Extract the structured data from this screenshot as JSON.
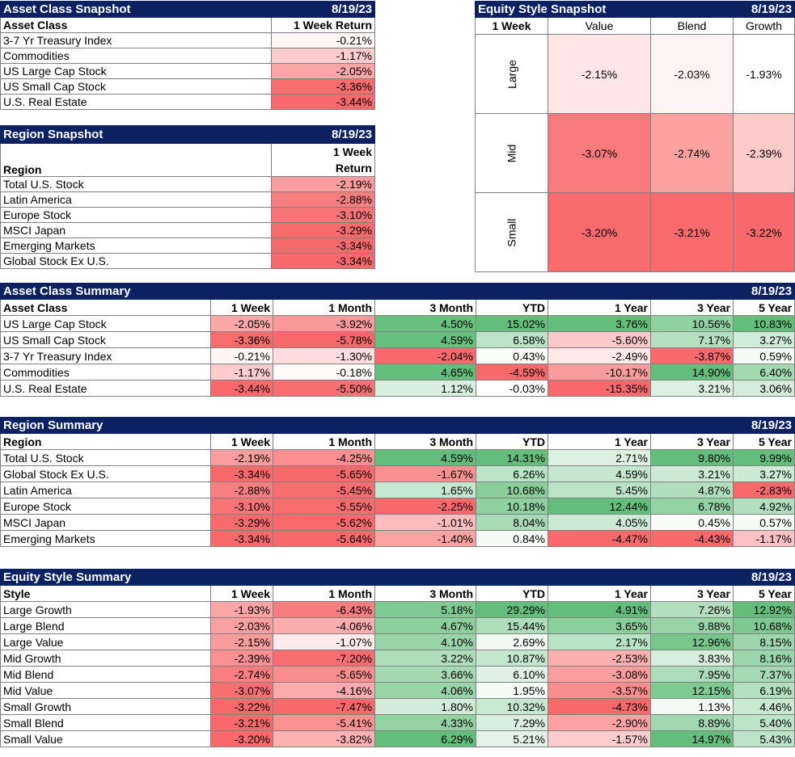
{
  "colors": {
    "header_bg": "#0b2161",
    "neg_strong": "#f8696b",
    "pos_strong": "#63be7b"
  },
  "asset_snapshot": {
    "title": "Asset Class Snapshot",
    "date": "8/19/23",
    "col_label": "Asset Class",
    "col_return": "1 Week Return",
    "rows": [
      {
        "name": "3-7 Yr Treasury Index",
        "value": "-0.21%"
      },
      {
        "name": "Commodities",
        "value": "-1.17%"
      },
      {
        "name": "US Large Cap Stock",
        "value": "-2.05%"
      },
      {
        "name": "US Small Cap Stock",
        "value": "-3.36%"
      },
      {
        "name": "U.S. Real Estate",
        "value": "-3.44%"
      }
    ]
  },
  "region_snapshot": {
    "title": "Region Snapshot",
    "date": "8/19/23",
    "col_label": "Region",
    "col_return_1": "1 Week",
    "col_return_2": "Return",
    "rows": [
      {
        "name": "Total U.S. Stock",
        "value": "-2.19%"
      },
      {
        "name": "Latin America",
        "value": "-2.88%"
      },
      {
        "name": "Europe Stock",
        "value": "-3.10%"
      },
      {
        "name": "MSCI Japan",
        "value": "-3.29%"
      },
      {
        "name": "Emerging Markets",
        "value": "-3.34%"
      },
      {
        "name": "Global Stock Ex U.S.",
        "value": "-3.34%"
      }
    ]
  },
  "style_snapshot": {
    "title": "Equity Style Snapshot",
    "date": "8/19/23",
    "period": "1 Week",
    "cols": [
      "Value",
      "Blend",
      "Growth"
    ],
    "rows": [
      {
        "name": "Large",
        "values": [
          "-2.15%",
          "-2.03%",
          "-1.93%"
        ]
      },
      {
        "name": "Mid",
        "values": [
          "-3.07%",
          "-2.74%",
          "-2.39%"
        ]
      },
      {
        "name": "Small",
        "values": [
          "-3.20%",
          "-3.21%",
          "-3.22%"
        ]
      }
    ]
  },
  "asset_summary": {
    "title": "Asset Class Summary",
    "date": "8/19/23",
    "headers": [
      "Asset Class",
      "1 Week",
      "1 Month",
      "3 Month",
      "YTD",
      "1 Year",
      "3 Year",
      "5 Year"
    ],
    "rows": [
      [
        "US Large Cap Stock",
        "-2.05%",
        "-3.92%",
        "4.50%",
        "15.02%",
        "3.76%",
        "10.56%",
        "10.83%"
      ],
      [
        "US Small Cap Stock",
        "-3.36%",
        "-5.78%",
        "4.59%",
        "6.58%",
        "-5.60%",
        "7.17%",
        "3.27%"
      ],
      [
        "3-7 Yr Treasury Index",
        "-0.21%",
        "-1.30%",
        "-2.04%",
        "0.43%",
        "-2.49%",
        "-3.87%",
        "0.59%"
      ],
      [
        "Commodities",
        "-1.17%",
        "-0.18%",
        "4.65%",
        "-4.59%",
        "-10.17%",
        "14.90%",
        "6.40%"
      ],
      [
        "U.S. Real Estate",
        "-3.44%",
        "-5.50%",
        "1.12%",
        "-0.03%",
        "-15.35%",
        "3.21%",
        "3.06%"
      ]
    ]
  },
  "region_summary": {
    "title": "Region Summary",
    "date": "8/19/23",
    "headers": [
      "Region",
      "1 Week",
      "1 Month",
      "3 Month",
      "YTD",
      "1 Year",
      "3 Year",
      "5 Year"
    ],
    "rows": [
      [
        "Total U.S. Stock",
        "-2.19%",
        "-4.25%",
        "4.59%",
        "14.31%",
        "2.71%",
        "9.80%",
        "9.99%"
      ],
      [
        "Global Stock Ex U.S.",
        "-3.34%",
        "-5.65%",
        "-1.67%",
        "6.26%",
        "4.59%",
        "3.21%",
        "3.27%"
      ],
      [
        "Latin America",
        "-2.88%",
        "-5.45%",
        "1.65%",
        "10.68%",
        "5.45%",
        "4.87%",
        "-2.83%"
      ],
      [
        "Europe Stock",
        "-3.10%",
        "-5.55%",
        "-2.25%",
        "10.18%",
        "12.44%",
        "6.78%",
        "4.92%"
      ],
      [
        "MSCI Japan",
        "-3.29%",
        "-5.62%",
        "-1.01%",
        "8.04%",
        "4.05%",
        "0.45%",
        "0.57%"
      ],
      [
        "Emerging Markets",
        "-3.34%",
        "-5.64%",
        "-1.40%",
        "0.84%",
        "-4.47%",
        "-4.43%",
        "-1.17%"
      ]
    ]
  },
  "style_summary": {
    "title": "Equity Style Summary",
    "date": "8/19/23",
    "headers": [
      "Style",
      "1 Week",
      "1 Month",
      "3 Month",
      "YTD",
      "1 Year",
      "3 Year",
      "5 Year"
    ],
    "rows": [
      [
        "Large Growth",
        "-1.93%",
        "-6.43%",
        "5.18%",
        "29.29%",
        "4.91%",
        "7.26%",
        "12.92%"
      ],
      [
        "Large Blend",
        "-2.03%",
        "-4.06%",
        "4.67%",
        "15.44%",
        "3.65%",
        "9.88%",
        "10.68%"
      ],
      [
        "Large Value",
        "-2.15%",
        "-1.07%",
        "4.10%",
        "2.69%",
        "2.17%",
        "12.96%",
        "8.15%"
      ],
      [
        "Mid Growth",
        "-2.39%",
        "-7.20%",
        "3.22%",
        "10.87%",
        "-2.53%",
        "3.83%",
        "8.16%"
      ],
      [
        "Mid Blend",
        "-2.74%",
        "-5.65%",
        "3.66%",
        "6.10%",
        "-3.08%",
        "7.95%",
        "7.37%"
      ],
      [
        "Mid Value",
        "-3.07%",
        "-4.16%",
        "4.06%",
        "1.95%",
        "-3.57%",
        "12.15%",
        "6.19%"
      ],
      [
        "Small Growth",
        "-3.22%",
        "-7.47%",
        "1.80%",
        "10.32%",
        "-4.73%",
        "1.13%",
        "4.46%"
      ],
      [
        "Small Blend",
        "-3.21%",
        "-5.41%",
        "4.33%",
        "7.29%",
        "-2.90%",
        "8.89%",
        "5.40%"
      ],
      [
        "Small Value",
        "-3.20%",
        "-3.82%",
        "6.29%",
        "5.21%",
        "-1.57%",
        "14.97%",
        "5.43%"
      ]
    ]
  }
}
